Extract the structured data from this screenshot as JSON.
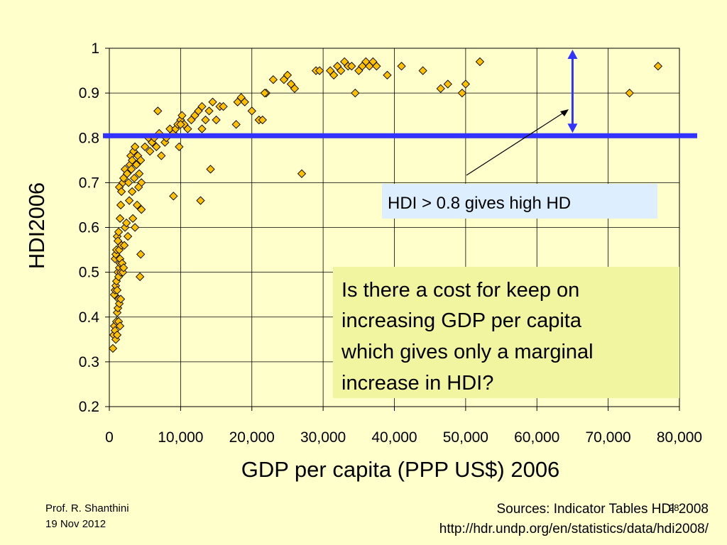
{
  "slide": {
    "callout_high": "HDI > 0.8 gives high HD",
    "question_lines": [
      "Is there a cost for keep on",
      "increasing GDP per capita",
      "which gives only a marginal",
      "increase in HDI?"
    ],
    "presenter": "Prof. R. Shanthini",
    "date": "19 Nov 2012",
    "page_number": "28",
    "source_line": "Sources: Indicator Tables HDI 2008",
    "source_url": "http://hdr.undp.org/en/statistics/data/hdi2008/"
  },
  "colors": {
    "background": "#ffffcc",
    "marker_fill": "#ffc000",
    "threshold_line": "#3333ff",
    "callout_box": "#ddeeff",
    "question_box": "#f2f5a0"
  },
  "chart_data": {
    "type": "scatter",
    "title": "",
    "xlabel": "GDP per capita (PPP US$) 2006",
    "ylabel": "HDI2006",
    "xlim": [
      0,
      80000
    ],
    "ylim": [
      0.2,
      1.0
    ],
    "xticks": [
      0,
      10000,
      20000,
      30000,
      40000,
      50000,
      60000,
      70000,
      80000
    ],
    "xtick_labels": [
      "0",
      "10,000",
      "20,000",
      "30,000",
      "40,000",
      "50,000",
      "60,000",
      "70,000",
      "80,000"
    ],
    "yticks": [
      0.2,
      0.3,
      0.4,
      0.5,
      0.6,
      0.7,
      0.8,
      0.9,
      1.0
    ],
    "ytick_labels": [
      "0.2",
      "0.3",
      "0.4",
      "0.5",
      "0.6",
      "0.7",
      "0.8",
      "0.9",
      "1"
    ],
    "grid": true,
    "threshold_hdi": 0.8,
    "gap_marker_x": 65000,
    "gap_marker_range": [
      0.8,
      0.97
    ],
    "points": [
      [
        500,
        0.33
      ],
      [
        600,
        0.36
      ],
      [
        700,
        0.38
      ],
      [
        800,
        0.37
      ],
      [
        900,
        0.35
      ],
      [
        1000,
        0.39
      ],
      [
        1100,
        0.41
      ],
      [
        1200,
        0.42
      ],
      [
        1300,
        0.44
      ],
      [
        1400,
        0.43
      ],
      [
        700,
        0.45
      ],
      [
        800,
        0.46
      ],
      [
        900,
        0.47
      ],
      [
        1000,
        0.48
      ],
      [
        1100,
        0.46
      ],
      [
        1200,
        0.5
      ],
      [
        1300,
        0.49
      ],
      [
        1400,
        0.51
      ],
      [
        1500,
        0.52
      ],
      [
        1600,
        0.5
      ],
      [
        800,
        0.53
      ],
      [
        900,
        0.54
      ],
      [
        1000,
        0.55
      ],
      [
        1100,
        0.58
      ],
      [
        1200,
        0.57
      ],
      [
        1300,
        0.59
      ],
      [
        1400,
        0.55
      ],
      [
        1500,
        0.53
      ],
      [
        1700,
        0.56
      ],
      [
        1800,
        0.52
      ],
      [
        1300,
        0.39
      ],
      [
        1500,
        0.38
      ],
      [
        1100,
        0.36
      ],
      [
        1600,
        0.44
      ],
      [
        1900,
        0.5
      ],
      [
        2000,
        0.51
      ],
      [
        2100,
        0.56
      ],
      [
        2200,
        0.6
      ],
      [
        2400,
        0.61
      ],
      [
        2600,
        0.58
      ],
      [
        1500,
        0.62
      ],
      [
        1600,
        0.65
      ],
      [
        1400,
        0.69
      ],
      [
        1700,
        0.68
      ],
      [
        1900,
        0.7
      ],
      [
        2000,
        0.71
      ],
      [
        2200,
        0.73
      ],
      [
        2500,
        0.72
      ],
      [
        2700,
        0.7
      ],
      [
        2900,
        0.74
      ],
      [
        3000,
        0.76
      ],
      [
        3100,
        0.73
      ],
      [
        3200,
        0.75
      ],
      [
        3400,
        0.77
      ],
      [
        3600,
        0.78
      ],
      [
        3800,
        0.74
      ],
      [
        4000,
        0.76
      ],
      [
        4200,
        0.72
      ],
      [
        4400,
        0.75
      ],
      [
        4500,
        0.7
      ],
      [
        3300,
        0.62
      ],
      [
        3600,
        0.6
      ],
      [
        3900,
        0.65
      ],
      [
        4500,
        0.64
      ],
      [
        4400,
        0.54
      ],
      [
        4300,
        0.49
      ],
      [
        3200,
        0.68
      ],
      [
        2800,
        0.66
      ],
      [
        3500,
        0.71
      ],
      [
        4100,
        0.69
      ],
      [
        5000,
        0.78
      ],
      [
        5500,
        0.8
      ],
      [
        5700,
        0.77
      ],
      [
        6000,
        0.79
      ],
      [
        6300,
        0.8
      ],
      [
        6600,
        0.78
      ],
      [
        7000,
        0.81
      ],
      [
        7300,
        0.76
      ],
      [
        7800,
        0.79
      ],
      [
        8000,
        0.8
      ],
      [
        6800,
        0.86
      ],
      [
        8500,
        0.82
      ],
      [
        9000,
        0.81
      ],
      [
        9300,
        0.82
      ],
      [
        9600,
        0.83
      ],
      [
        10000,
        0.84
      ],
      [
        10200,
        0.85
      ],
      [
        10500,
        0.83
      ],
      [
        11000,
        0.82
      ],
      [
        11500,
        0.84
      ],
      [
        9000,
        0.67
      ],
      [
        9800,
        0.78
      ],
      [
        10000,
        0.83
      ],
      [
        12000,
        0.85
      ],
      [
        12500,
        0.86
      ],
      [
        13000,
        0.87
      ],
      [
        13500,
        0.84
      ],
      [
        14000,
        0.86
      ],
      [
        14500,
        0.88
      ],
      [
        15000,
        0.84
      ],
      [
        12800,
        0.66
      ],
      [
        14200,
        0.73
      ],
      [
        13000,
        0.82
      ],
      [
        15500,
        0.87
      ],
      [
        16000,
        0.87
      ],
      [
        18000,
        0.88
      ],
      [
        18500,
        0.89
      ],
      [
        19000,
        0.88
      ],
      [
        20000,
        0.86
      ],
      [
        21000,
        0.84
      ],
      [
        17800,
        0.83
      ],
      [
        21500,
        0.84
      ],
      [
        22000,
        0.9
      ],
      [
        21800,
        0.9
      ],
      [
        23000,
        0.93
      ],
      [
        24500,
        0.93
      ],
      [
        25000,
        0.94
      ],
      [
        25500,
        0.92
      ],
      [
        26000,
        0.91
      ],
      [
        27000,
        0.72
      ],
      [
        29000,
        0.95
      ],
      [
        29500,
        0.95
      ],
      [
        31000,
        0.95
      ],
      [
        31500,
        0.94
      ],
      [
        32000,
        0.96
      ],
      [
        32500,
        0.95
      ],
      [
        33000,
        0.97
      ],
      [
        33500,
        0.96
      ],
      [
        34000,
        0.96
      ],
      [
        34500,
        0.9
      ],
      [
        35000,
        0.95
      ],
      [
        35500,
        0.96
      ],
      [
        36000,
        0.97
      ],
      [
        36500,
        0.96
      ],
      [
        37000,
        0.97
      ],
      [
        37500,
        0.96
      ],
      [
        39000,
        0.94
      ],
      [
        41000,
        0.96
      ],
      [
        44000,
        0.95
      ],
      [
        46500,
        0.91
      ],
      [
        47500,
        0.92
      ],
      [
        49500,
        0.9
      ],
      [
        50000,
        0.92
      ],
      [
        52000,
        0.97
      ],
      [
        73000,
        0.9
      ],
      [
        77000,
        0.96
      ]
    ]
  }
}
